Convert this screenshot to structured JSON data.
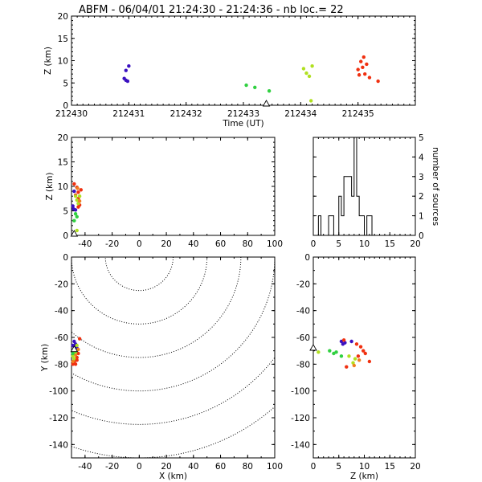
{
  "title": "ABFM - 06/04/01 21:24:30 - 21:24:36 - nb loc.=      22",
  "chart_data": [
    {
      "id": "time_z",
      "type": "scatter",
      "title": "ABFM - 06/04/01 21:24:30 - 21:24:36 - nb loc.=      22",
      "xlabel": "Time (UT)",
      "ylabel": "Z (km)",
      "xlim": [
        212430,
        212436
      ],
      "ylim": [
        0,
        20
      ],
      "xticks": [
        "212430",
        "212431",
        "212432",
        "212433",
        "212434",
        "212435"
      ],
      "yticks": [
        "0",
        "5",
        "10",
        "15",
        "20"
      ],
      "station_marker": {
        "x": 212433.4,
        "y": 0
      },
      "points": [
        {
          "x": 212431.0,
          "y": 8.8,
          "color": "#3a10c0"
        },
        {
          "x": 212430.95,
          "y": 7.8,
          "color": "#3a10c0"
        },
        {
          "x": 212430.92,
          "y": 6.0,
          "color": "#3a10c0"
        },
        {
          "x": 212430.95,
          "y": 5.6,
          "color": "#3a10c0"
        },
        {
          "x": 212430.98,
          "y": 5.4,
          "color": "#3a10c0"
        },
        {
          "x": 212433.05,
          "y": 4.5,
          "color": "#30d040"
        },
        {
          "x": 212433.2,
          "y": 4.0,
          "color": "#30d040"
        },
        {
          "x": 212433.45,
          "y": 3.2,
          "color": "#30d040"
        },
        {
          "x": 212434.05,
          "y": 8.2,
          "color": "#b0e020"
        },
        {
          "x": 212434.1,
          "y": 7.2,
          "color": "#b0e020"
        },
        {
          "x": 212434.15,
          "y": 6.5,
          "color": "#b0e020"
        },
        {
          "x": 212434.2,
          "y": 8.8,
          "color": "#b0e020"
        },
        {
          "x": 212434.18,
          "y": 1.0,
          "color": "#b0e020"
        },
        {
          "x": 212435.1,
          "y": 10.8,
          "color": "#f03010"
        },
        {
          "x": 212435.05,
          "y": 9.8,
          "color": "#f03010"
        },
        {
          "x": 212435.15,
          "y": 9.2,
          "color": "#f03010"
        },
        {
          "x": 212435.08,
          "y": 8.5,
          "color": "#f03010"
        },
        {
          "x": 212435.0,
          "y": 8.0,
          "color": "#f03010"
        },
        {
          "x": 212435.12,
          "y": 7.0,
          "color": "#f03010"
        },
        {
          "x": 212435.2,
          "y": 6.2,
          "color": "#f03010"
        },
        {
          "x": 212435.35,
          "y": 5.4,
          "color": "#f03010"
        },
        {
          "x": 212435.02,
          "y": 6.8,
          "color": "#f03010"
        }
      ]
    },
    {
      "id": "x_z",
      "type": "scatter",
      "xlabel": "",
      "ylabel": "Z (km)",
      "xlim": [
        -50,
        100
      ],
      "ylim": [
        0,
        20
      ],
      "xticks": [
        "-40",
        "-20",
        "0",
        "20",
        "40",
        "60",
        "80",
        "100"
      ],
      "yticks": [
        "0",
        "5",
        "10",
        "15",
        "20"
      ],
      "station_marker": {
        "x": -48,
        "y": 0
      },
      "points": [
        {
          "x": -48,
          "y": 10.5,
          "color": "#f03010"
        },
        {
          "x": -46,
          "y": 9.8,
          "color": "#f03010"
        },
        {
          "x": -45,
          "y": 8.8,
          "color": "#f03010"
        },
        {
          "x": -43,
          "y": 9.3,
          "color": "#f03010"
        },
        {
          "x": -47,
          "y": 8.2,
          "color": "#f03010"
        },
        {
          "x": -45,
          "y": 7.5,
          "color": "#f03010"
        },
        {
          "x": -44,
          "y": 6.2,
          "color": "#f03010"
        },
        {
          "x": -48,
          "y": 9.0,
          "color": "#3a10c0"
        },
        {
          "x": -49,
          "y": 6.0,
          "color": "#3a10c0"
        },
        {
          "x": -48.5,
          "y": 5.4,
          "color": "#3a10c0"
        },
        {
          "x": -47,
          "y": 5.2,
          "color": "#3a10c0"
        },
        {
          "x": -47,
          "y": 8.0,
          "color": "#b0e020"
        },
        {
          "x": -46,
          "y": 7.2,
          "color": "#b0e020"
        },
        {
          "x": -45,
          "y": 6.5,
          "color": "#b0e020"
        },
        {
          "x": -44,
          "y": 8.0,
          "color": "#b0e020"
        },
        {
          "x": -46,
          "y": 1.0,
          "color": "#b0e020"
        },
        {
          "x": -47,
          "y": 4.4,
          "color": "#30d040"
        },
        {
          "x": -46,
          "y": 3.8,
          "color": "#30d040"
        },
        {
          "x": -48,
          "y": 3.0,
          "color": "#30d040"
        },
        {
          "x": -44,
          "y": 7.0,
          "color": "#f08020"
        },
        {
          "x": -45.5,
          "y": 9.6,
          "color": "#f08020"
        },
        {
          "x": -45,
          "y": 5.8,
          "color": "#f03010"
        }
      ]
    },
    {
      "id": "histogram",
      "type": "bar",
      "xlabel": "",
      "ylabel": "number of sources",
      "xlim": [
        0,
        20
      ],
      "ylim": [
        0,
        5
      ],
      "xticks": [
        "0",
        "5",
        "10",
        "15",
        "20"
      ],
      "yticks": [
        "0",
        "1",
        "2",
        "3",
        "4",
        "5"
      ],
      "bin_width": 0.5,
      "bins": [
        {
          "x": 1.0,
          "value": 1
        },
        {
          "x": 3.0,
          "value": 1
        },
        {
          "x": 3.5,
          "value": 1
        },
        {
          "x": 5.0,
          "value": 2
        },
        {
          "x": 5.5,
          "value": 1
        },
        {
          "x": 6.0,
          "value": 3
        },
        {
          "x": 6.5,
          "value": 3
        },
        {
          "x": 7.0,
          "value": 3
        },
        {
          "x": 7.5,
          "value": 2
        },
        {
          "x": 8.0,
          "value": 5
        },
        {
          "x": 8.5,
          "value": 2
        },
        {
          "x": 9.0,
          "value": 1
        },
        {
          "x": 9.5,
          "value": 1
        },
        {
          "x": 10.5,
          "value": 1
        },
        {
          "x": 11.0,
          "value": 1
        }
      ]
    },
    {
      "id": "x_y",
      "type": "scatter",
      "xlabel": "X (km)",
      "ylabel": "Y (km)",
      "xlim": [
        -50,
        100
      ],
      "ylim": [
        -150,
        0
      ],
      "xticks": [
        "-40",
        "-20",
        "0",
        "20",
        "40",
        "60",
        "80",
        "100"
      ],
      "yticks": [
        "-140",
        "-120",
        "-100",
        "-80",
        "-60",
        "-40",
        "-20",
        "0"
      ],
      "range_rings_km": [
        25,
        50,
        75,
        100,
        125,
        150
      ],
      "range_ring_center": {
        "x": 0,
        "y": 0
      },
      "station_marker": {
        "x": -48,
        "y": -70
      },
      "points": [
        {
          "x": -47,
          "y": -65,
          "color": "#3a10c0"
        },
        {
          "x": -48,
          "y": -67,
          "color": "#3a10c0"
        },
        {
          "x": -46,
          "y": -68,
          "color": "#3a10c0"
        },
        {
          "x": -49,
          "y": -66,
          "color": "#3a10c0"
        },
        {
          "x": -48,
          "y": -63,
          "color": "#3a10c0"
        },
        {
          "x": -44,
          "y": -61,
          "color": "#f03010"
        },
        {
          "x": -45,
          "y": -72,
          "color": "#f03010"
        },
        {
          "x": -46,
          "y": -75,
          "color": "#f03010"
        },
        {
          "x": -48,
          "y": -78,
          "color": "#f03010"
        },
        {
          "x": -49,
          "y": -80,
          "color": "#f03010"
        },
        {
          "x": -47,
          "y": -73,
          "color": "#f08020"
        },
        {
          "x": -45,
          "y": -69,
          "color": "#f08020"
        },
        {
          "x": -49,
          "y": -74,
          "color": "#b0e020"
        },
        {
          "x": -47,
          "y": -71,
          "color": "#b0e020"
        },
        {
          "x": -48,
          "y": -76,
          "color": "#b0e020"
        },
        {
          "x": -46,
          "y": -66,
          "color": "#b0e020"
        },
        {
          "x": -49,
          "y": -72,
          "color": "#30d040"
        },
        {
          "x": -47,
          "y": -70,
          "color": "#30d040"
        },
        {
          "x": -48,
          "y": -69,
          "color": "#30d040"
        },
        {
          "x": -46,
          "y": -77,
          "color": "#f03010"
        },
        {
          "x": -49,
          "y": -78,
          "color": "#f08020"
        },
        {
          "x": -47,
          "y": -80,
          "color": "#f03010"
        }
      ]
    },
    {
      "id": "z_y",
      "type": "scatter",
      "xlabel": "Z (km)",
      "ylabel": "",
      "xlim": [
        0,
        20
      ],
      "ylim": [
        -150,
        0
      ],
      "xticks": [
        "0",
        "5",
        "10",
        "15",
        "20"
      ],
      "yticks": [
        "-140",
        "-120",
        "-100",
        "-80",
        "-60",
        "-40",
        "-20",
        "0"
      ],
      "station_marker": {
        "x": 0,
        "y": -69
      },
      "points": [
        {
          "x": 5.5,
          "y": -63,
          "color": "#3a10c0"
        },
        {
          "x": 6.2,
          "y": -64,
          "color": "#3a10c0"
        },
        {
          "x": 7.5,
          "y": -63,
          "color": "#3a10c0"
        },
        {
          "x": 5.8,
          "y": -65,
          "color": "#3a10c0"
        },
        {
          "x": 6.0,
          "y": -62,
          "color": "#f03010"
        },
        {
          "x": 8.5,
          "y": -65,
          "color": "#f03010"
        },
        {
          "x": 9.3,
          "y": -67,
          "color": "#f03010"
        },
        {
          "x": 9.8,
          "y": -70,
          "color": "#f03010"
        },
        {
          "x": 10.2,
          "y": -72,
          "color": "#f03010"
        },
        {
          "x": 11.0,
          "y": -78,
          "color": "#f03010"
        },
        {
          "x": 8.8,
          "y": -74,
          "color": "#f03010"
        },
        {
          "x": 6.5,
          "y": -82,
          "color": "#f03010"
        },
        {
          "x": 9.0,
          "y": -77,
          "color": "#f08020"
        },
        {
          "x": 7.8,
          "y": -79,
          "color": "#b0e020"
        },
        {
          "x": 8.2,
          "y": -76,
          "color": "#b0e020"
        },
        {
          "x": 7.0,
          "y": -74,
          "color": "#b0e020"
        },
        {
          "x": 1.0,
          "y": -71,
          "color": "#b0e020"
        },
        {
          "x": 3.2,
          "y": -70,
          "color": "#30d040"
        },
        {
          "x": 4.0,
          "y": -72,
          "color": "#30d040"
        },
        {
          "x": 4.5,
          "y": -71,
          "color": "#30d040"
        },
        {
          "x": 5.5,
          "y": -74,
          "color": "#30d040"
        },
        {
          "x": 8.0,
          "y": -81,
          "color": "#f08020"
        }
      ]
    }
  ]
}
